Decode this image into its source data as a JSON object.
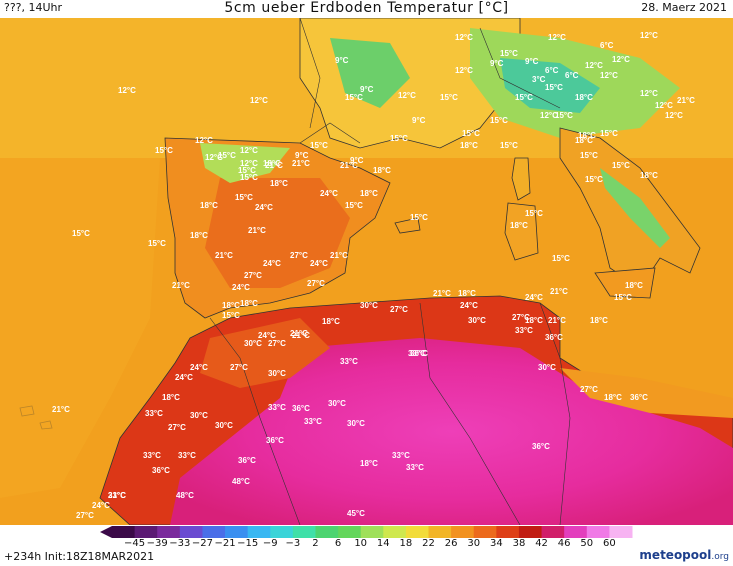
{
  "header": {
    "left": "???, 14Uhr",
    "title": "5cm ueber Erdboden Temperatur [°C]",
    "right": "28. Maerz 2021"
  },
  "footer": {
    "run_info": "+234h  Init:18Z18MAR2021",
    "logo_text": "meteopool",
    "logo_suffix": ".org"
  },
  "colorbar": {
    "labels": [
      "−45",
      "−39",
      "−33",
      "−27",
      "−21",
      "−15",
      "−9",
      "−3",
      "2",
      "6",
      "10",
      "14",
      "18",
      "22",
      "26",
      "30",
      "34",
      "38",
      "42",
      "46",
      "50",
      "60"
    ],
    "colors": [
      "#3b0a48",
      "#5b1a73",
      "#7a2a9c",
      "#6a4bd1",
      "#4a6ee8",
      "#3a8ff0",
      "#39b7f2",
      "#3ad4d8",
      "#3fe0a8",
      "#4cd470",
      "#63d65b",
      "#9fe05a",
      "#cfe84e",
      "#f2dc3a",
      "#f2b527",
      "#f29220",
      "#ec6a1c",
      "#de3f17",
      "#c11d13",
      "#d11f6a",
      "#e33fbd",
      "#f07ae6",
      "#f7b3f2"
    ]
  },
  "temperature_labels": [
    "12°C",
    "12°C",
    "6°C",
    "12°C",
    "9°C",
    "12°C",
    "9°C",
    "15°C",
    "9°C",
    "6°C",
    "12°C",
    "12°C",
    "12°C",
    "12°C",
    "9°C",
    "15°C",
    "15°C",
    "12°C",
    "15°C",
    "3°C",
    "6°C",
    "12°C",
    "15°C",
    "12°C",
    "12°C",
    "18°C",
    "21°C",
    "12°C",
    "15°C",
    "15°C",
    "12°C",
    "15°C",
    "12°C",
    "9°C",
    "15°C",
    "18°C",
    "15°C",
    "9°C",
    "18°C",
    "15°C",
    "15°C",
    "15°C",
    "9°C",
    "12°C",
    "15°C",
    "15°C",
    "18°C",
    "21°C",
    "18°C",
    "18°C",
    "15°C",
    "21°C",
    "21°C",
    "12°C",
    "12°C",
    "15°C",
    "15°C",
    "18°C",
    "24°C",
    "24°C",
    "15°C",
    "18°C",
    "18°C",
    "15°C",
    "15°C",
    "18°C",
    "18°C",
    "21°C",
    "15°C",
    "15°C",
    "18°C",
    "21°C",
    "24°C",
    "27°C",
    "21°C",
    "24°C",
    "18°C",
    "15°C",
    "15°C",
    "15°C",
    "21°C",
    "27°C",
    "24°C",
    "27°C",
    "15°C",
    "18°C",
    "15°C",
    "21°C",
    "18°C",
    "24°C",
    "21°C",
    "18°C",
    "30°C",
    "27°C",
    "21°C",
    "18°C",
    "24°C",
    "24°C",
    "21°C",
    "18°C",
    "30°C",
    "27°C",
    "33°C",
    "18°C",
    "36°C",
    "27°C",
    "30°C",
    "33°C",
    "33°C",
    "21°C",
    "30°C",
    "24°C",
    "30°C",
    "27°C",
    "24°C",
    "21°C",
    "18°C",
    "27°C",
    "30°C",
    "33°C",
    "30°C",
    "33°C",
    "30°C",
    "36°C",
    "33°C",
    "30°C",
    "33°C",
    "33°C",
    "36°C",
    "33°C",
    "18°C",
    "36°C",
    "36°C",
    "33°C",
    "36°C",
    "36°C",
    "33°C",
    "36°C",
    "48°C",
    "27°C",
    "24°C",
    "21°C",
    "48°C",
    "45°C",
    "18°C",
    "27°C"
  ]
}
